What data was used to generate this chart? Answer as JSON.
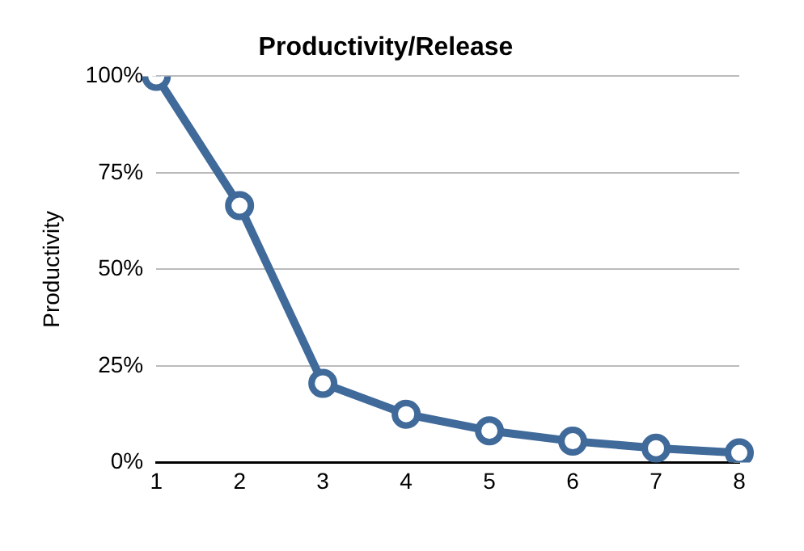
{
  "chart_data": {
    "type": "line",
    "title": "Productivity/Release",
    "ylabel": "Productivity",
    "categories": [
      "1",
      "2",
      "3",
      "4",
      "5",
      "6",
      "7",
      "8"
    ],
    "series": [
      {
        "color": "#3f6a9a",
        "values": [
          100,
          66.5,
          20.5,
          12.5,
          8.2,
          5.5,
          3.7,
          2.5
        ]
      }
    ],
    "ylim": [
      0,
      100
    ],
    "yticks": [
      {
        "value": 0,
        "label": "0%"
      },
      {
        "value": 25,
        "label": "25%"
      },
      {
        "value": 50,
        "label": "50%"
      },
      {
        "value": 75,
        "label": "75%"
      },
      {
        "value": 100,
        "label": "100%"
      }
    ],
    "grid": "y",
    "legend": false,
    "marker": "circle",
    "line_style": "solid"
  }
}
